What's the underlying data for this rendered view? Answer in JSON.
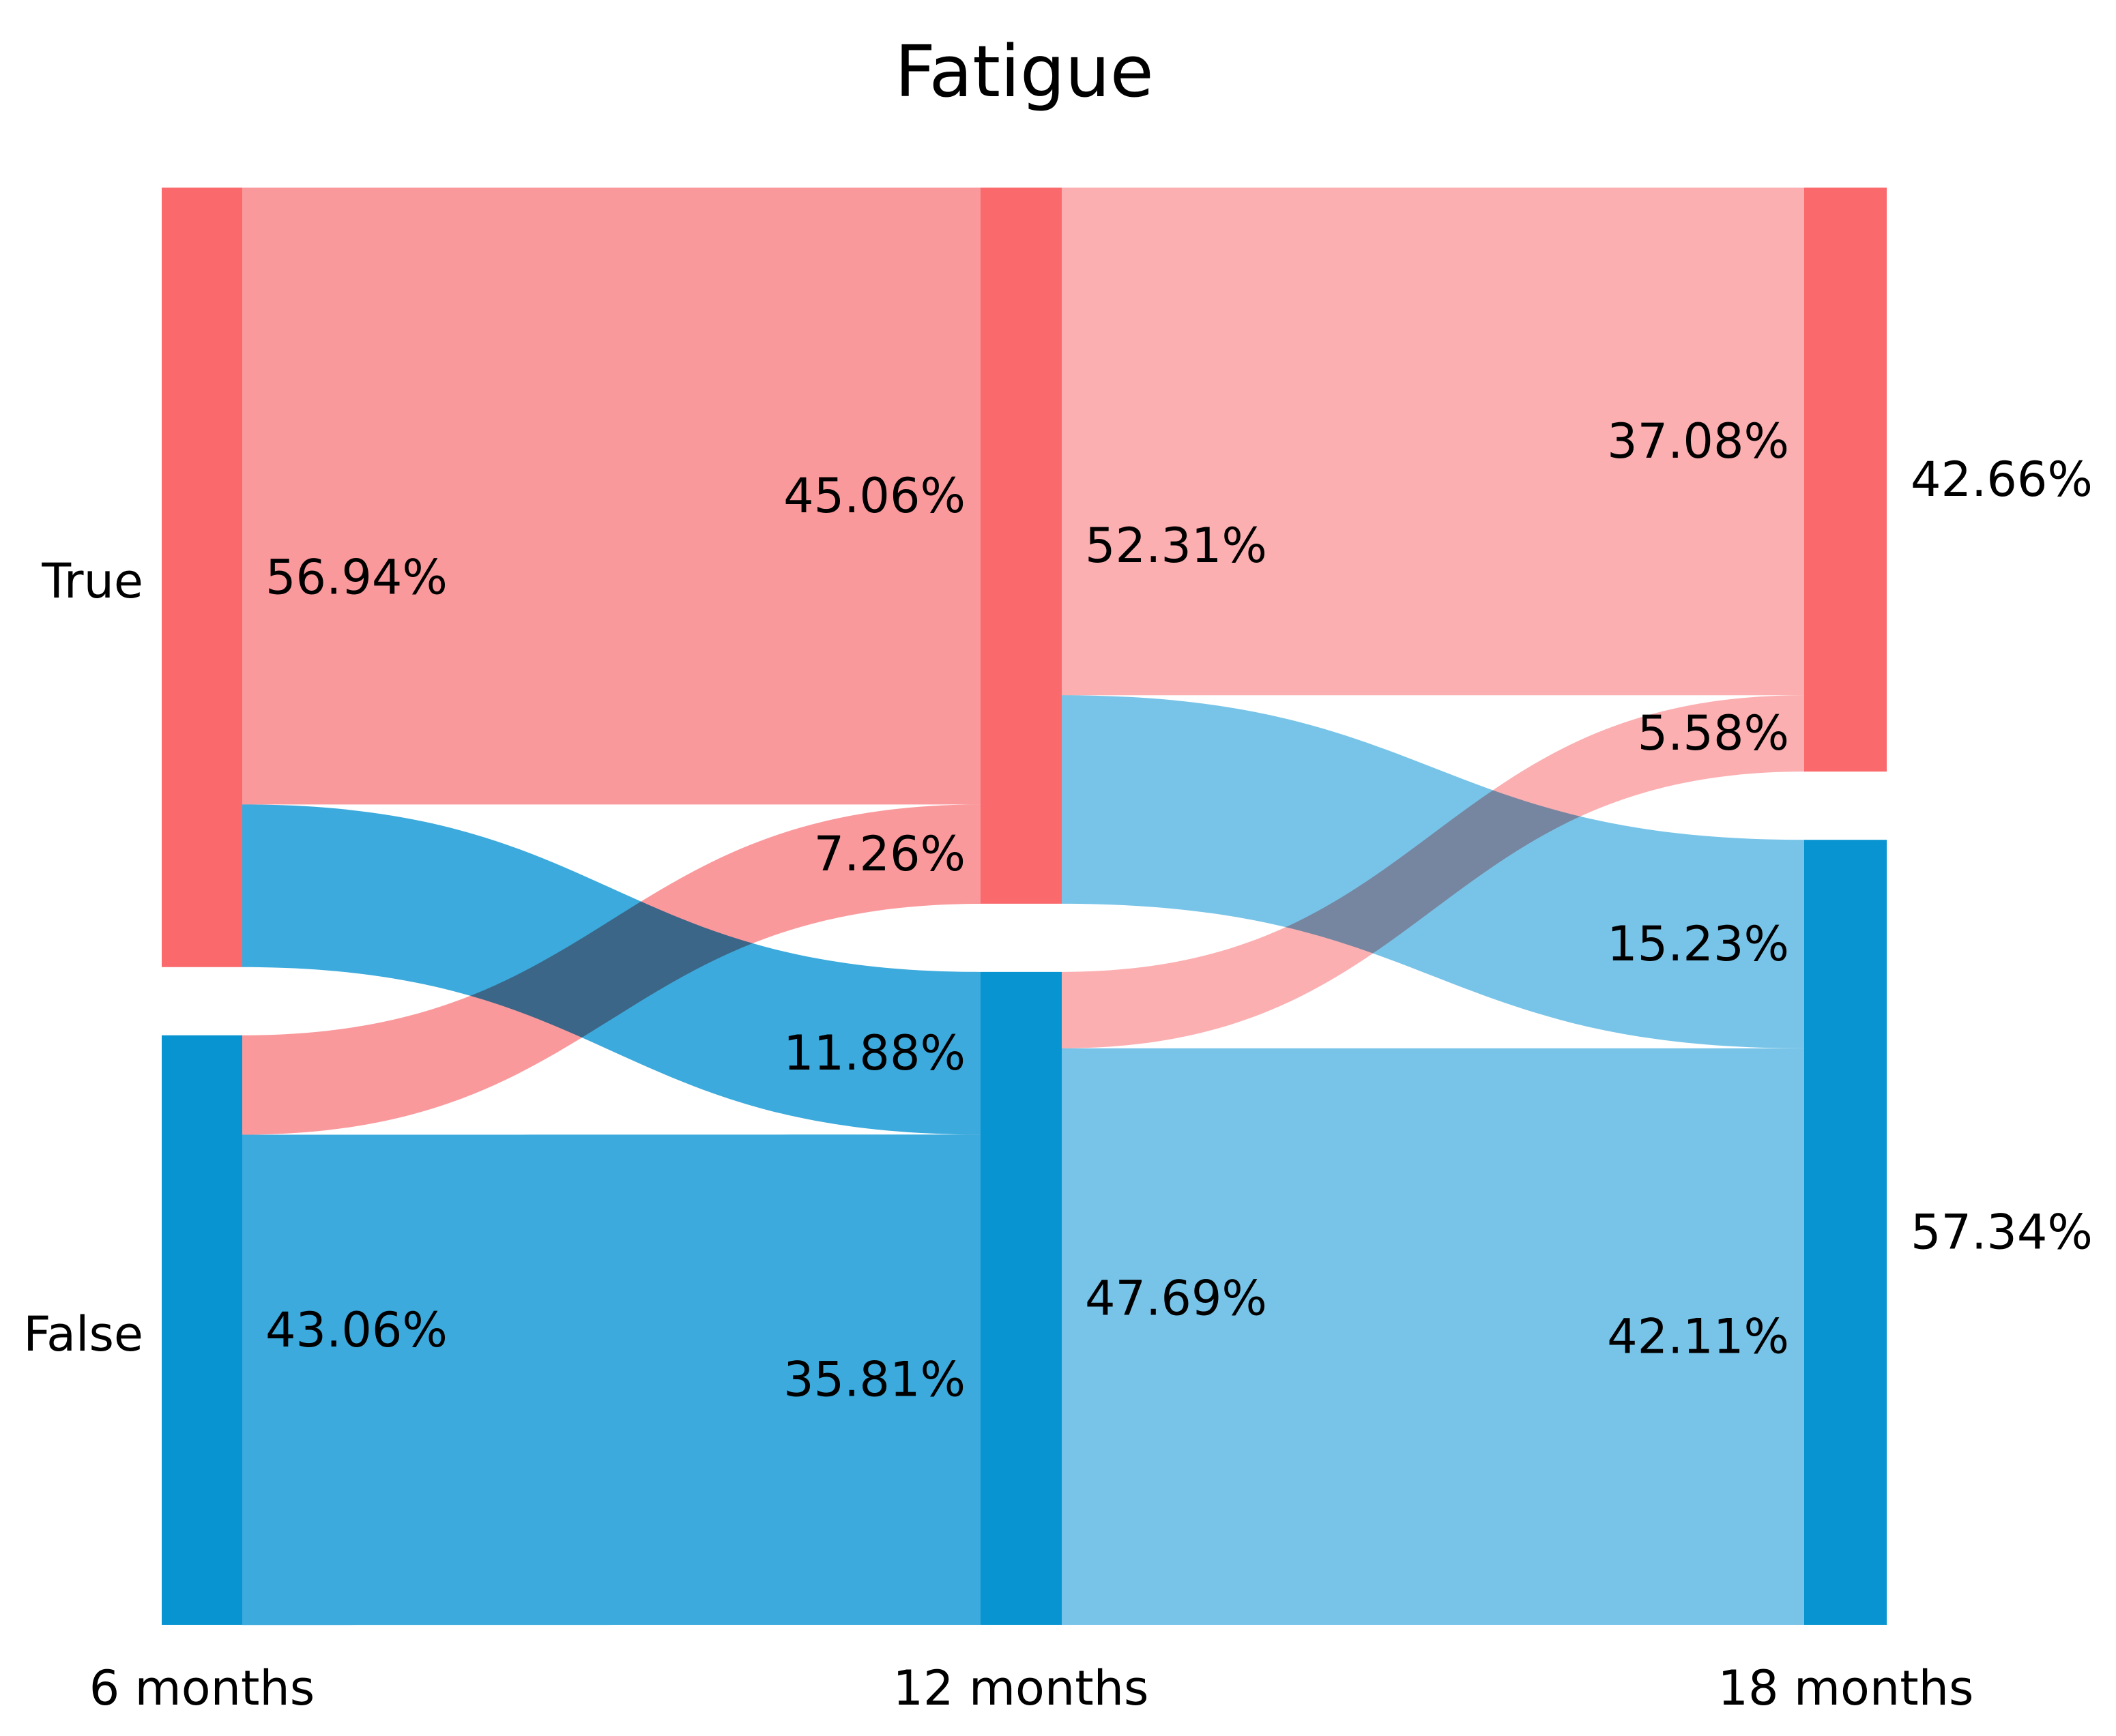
{
  "chart_data": {
    "type": "sankey",
    "title": "Fatigue",
    "stages": [
      "6 months",
      "12 months",
      "18 months"
    ],
    "categories": [
      {
        "name": "True",
        "color": "#FA6A6D"
      },
      {
        "name": "False",
        "color": "#0894D0"
      }
    ],
    "nodes": [
      {
        "stage": 0,
        "category": "True",
        "pct": 56.94,
        "label": "56.94%"
      },
      {
        "stage": 0,
        "category": "False",
        "pct": 43.06,
        "label": "43.06%"
      },
      {
        "stage": 1,
        "category": "True",
        "pct": 52.31,
        "label": "52.31%"
      },
      {
        "stage": 1,
        "category": "False",
        "pct": 47.69,
        "label": "47.69%"
      },
      {
        "stage": 2,
        "category": "True",
        "pct": 42.66,
        "label": "42.66%"
      },
      {
        "stage": 2,
        "category": "False",
        "pct": 57.34,
        "label": "57.34%"
      }
    ],
    "flows": [
      {
        "from_stage": 0,
        "to_stage": 1,
        "from": "True",
        "to": "True",
        "pct": 45.06,
        "label": "45.06%",
        "color": "#FA999C"
      },
      {
        "from_stage": 0,
        "to_stage": 1,
        "from": "True",
        "to": "False",
        "pct": 11.88,
        "label": "11.88%",
        "color": "#3CAADC"
      },
      {
        "from_stage": 0,
        "to_stage": 1,
        "from": "False",
        "to": "True",
        "pct": 7.26,
        "label": "7.26%",
        "color": "#FA999C"
      },
      {
        "from_stage": 0,
        "to_stage": 1,
        "from": "False",
        "to": "False",
        "pct": 35.81,
        "label": "35.81%",
        "color": "#3CAADC"
      },
      {
        "from_stage": 1,
        "to_stage": 2,
        "from": "True",
        "to": "True",
        "pct": 37.08,
        "label": "37.08%",
        "color": "#FBAFB1"
      },
      {
        "from_stage": 1,
        "to_stage": 2,
        "from": "True",
        "to": "False",
        "pct": 15.23,
        "label": "15.23%",
        "color": "#78C4E8"
      },
      {
        "from_stage": 1,
        "to_stage": 2,
        "from": "False",
        "to": "True",
        "pct": 5.58,
        "label": "5.58%",
        "color": "#FBAFB1"
      },
      {
        "from_stage": 1,
        "to_stage": 2,
        "from": "False",
        "to": "False",
        "pct": 42.11,
        "label": "42.11%",
        "color": "#78C4E8"
      }
    ],
    "legend": "none",
    "grid": "off",
    "text_color": "#000000",
    "background": "#FFFFFF"
  }
}
